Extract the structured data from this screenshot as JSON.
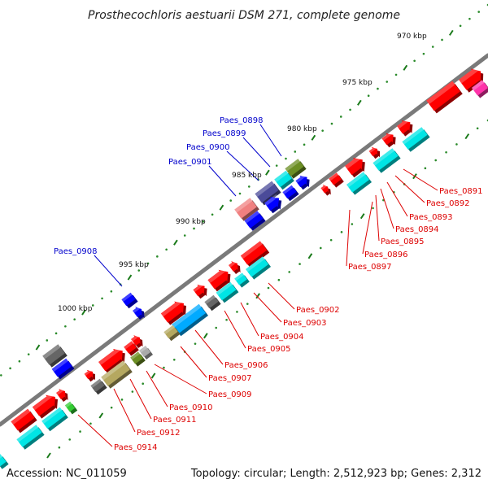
{
  "title": "Prosthecochloris aestuarii DSM 271, complete genome",
  "accession": "Accession: NC_011059",
  "topology": "Topology: circular; Length: 2,512,923 bp; Genes: 2,312",
  "colors": {
    "backbone": "#7a7a7a",
    "forward_gene": "#ff0000",
    "reverse_gene": "#0000ff",
    "cds_cyan": "#00e5e5",
    "label_red": "#dd0000",
    "label_blue": "#0000cc",
    "tick_dot": "#2a8a2a",
    "tick_dash": "#1a7a1a"
  },
  "kbp_ticks": [
    "970 kbp",
    "975 kbp",
    "980 kbp",
    "985 kbp",
    "990 kbp",
    "995 kbp",
    "1000 kbp"
  ],
  "labels_outer": [
    "Paes_0898",
    "Paes_0899",
    "Paes_0900",
    "Paes_0901",
    "Paes_0908"
  ],
  "labels_inner": [
    "Paes_0891",
    "Paes_0892",
    "Paes_0893",
    "Paes_0894",
    "Paes_0895",
    "Paes_0896",
    "Paes_0897",
    "Paes_0902",
    "Paes_0903",
    "Paes_0904",
    "Paes_0905",
    "Paes_0906",
    "Paes_0907",
    "Paes_0909",
    "Paes_0910",
    "Paes_0911",
    "Paes_0912",
    "Paes_0914"
  ]
}
